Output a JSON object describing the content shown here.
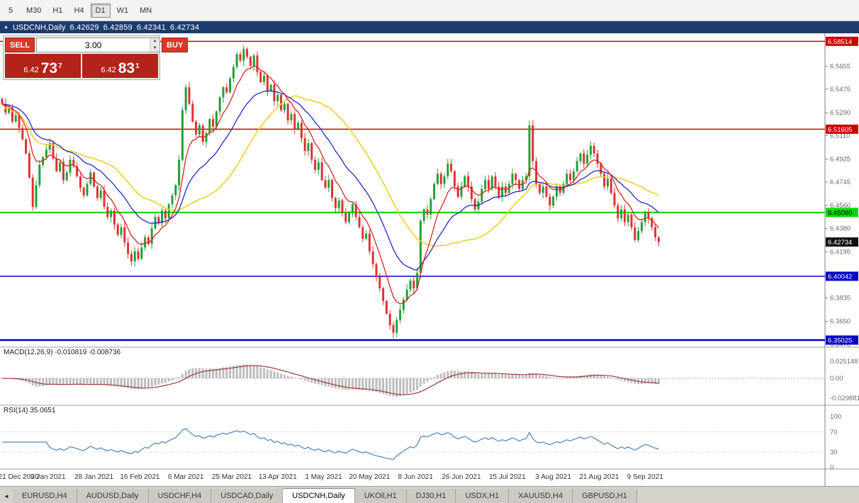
{
  "icons": {
    "collapse": "▲",
    "up_arrow": "▲",
    "down_arrow": "▼",
    "tab_scroll_left": "◄"
  },
  "toolbar": {
    "periods": [
      {
        "label": "5",
        "active": false
      },
      {
        "label": "M30",
        "active": false
      },
      {
        "label": "H1",
        "active": false
      },
      {
        "label": "H4",
        "active": false
      },
      {
        "label": "D1",
        "active": true
      },
      {
        "label": "W1",
        "active": false
      },
      {
        "label": "MN",
        "active": false
      }
    ]
  },
  "chart_window": {
    "symbol": "USDCNH,Daily",
    "open": "6.42629",
    "high": "6.42859",
    "low": "6.42341",
    "close": "6.42734"
  },
  "trade_panel": {
    "sell_label": "SELL",
    "buy_label": "BUY",
    "volume": "3.00",
    "sell_price": {
      "prefix": "6.42",
      "big": "73",
      "sup": "7"
    },
    "buy_price": {
      "prefix": "6.42",
      "big": "83",
      "sup": "1"
    }
  },
  "tabs": [
    {
      "label": "EURUSD,H4",
      "active": false
    },
    {
      "label": "AUDUSD,Daily",
      "active": false
    },
    {
      "label": "USDCHF,H4",
      "active": false
    },
    {
      "label": "USDCAD,Daily",
      "active": false
    },
    {
      "label": "USDCNH,Daily",
      "active": true
    },
    {
      "label": "UKOil,H1",
      "active": false
    },
    {
      "label": "DJ30,H1",
      "active": false
    },
    {
      "label": "USDX,H1",
      "active": false
    },
    {
      "label": "XAUUSD,H4",
      "active": false
    },
    {
      "label": "GBPUSD,H1",
      "active": false
    }
  ],
  "chart_data": {
    "type": "candlestick",
    "symbol": "USDCNH",
    "timeframe": "Daily",
    "closes": [
      6.536,
      6.529,
      6.533,
      6.522,
      6.527,
      6.517,
      6.508,
      6.497,
      6.478,
      6.455,
      6.472,
      6.488,
      6.494,
      6.5,
      6.505,
      6.493,
      6.483,
      6.49,
      6.476,
      6.482,
      6.492,
      6.487,
      6.479,
      6.47,
      6.464,
      6.473,
      6.482,
      6.471,
      6.462,
      6.468,
      6.455,
      6.447,
      6.452,
      6.441,
      6.433,
      6.439,
      6.427,
      6.418,
      6.412,
      6.42,
      6.414,
      6.423,
      6.431,
      6.426,
      6.438,
      6.447,
      6.442,
      6.452,
      6.446,
      6.457,
      6.464,
      6.472,
      6.492,
      6.531,
      6.549,
      6.536,
      6.522,
      6.512,
      6.519,
      6.506,
      6.513,
      6.524,
      6.518,
      6.53,
      6.541,
      6.549,
      6.545,
      6.556,
      6.565,
      6.575,
      6.57,
      6.579,
      6.573,
      6.566,
      6.574,
      6.561,
      6.553,
      6.558,
      6.546,
      6.551,
      6.538,
      6.543,
      6.531,
      6.536,
      6.523,
      6.528,
      6.516,
      6.521,
      6.509,
      6.499,
      6.505,
      6.492,
      6.484,
      6.49,
      6.476,
      6.47,
      6.476,
      6.462,
      6.454,
      6.46,
      6.45,
      6.443,
      6.451,
      6.457,
      6.447,
      6.439,
      6.43,
      6.434,
      6.42,
      6.41,
      6.4,
      6.391,
      6.381,
      6.371,
      6.362,
      6.356,
      6.366,
      6.374,
      6.382,
      6.39,
      6.397,
      6.391,
      6.403,
      6.444,
      6.453,
      6.449,
      6.461,
      6.473,
      6.481,
      6.473,
      6.479,
      6.489,
      6.483,
      6.471,
      6.463,
      6.471,
      6.479,
      6.471,
      6.461,
      6.453,
      6.459,
      6.469,
      6.476,
      6.469,
      6.479,
      6.471,
      6.463,
      6.471,
      6.466,
      6.473,
      6.481,
      6.476,
      6.469,
      6.476,
      6.479,
      6.519,
      6.491,
      6.473,
      6.466,
      6.471,
      6.463,
      6.456,
      6.463,
      6.471,
      6.466,
      6.473,
      6.481,
      6.476,
      6.483,
      6.491,
      6.497,
      6.489,
      6.496,
      6.503,
      6.497,
      6.489,
      6.481,
      6.471,
      6.477,
      6.466,
      6.456,
      6.446,
      6.453,
      6.443,
      6.449,
      6.439,
      6.429,
      6.436,
      6.443,
      6.451,
      6.446,
      6.439,
      6.431,
      6.4273
    ],
    "levels": [
      {
        "price": 6.58514,
        "color": "#cc0000",
        "width": 1.5
      },
      {
        "price": 6.51605,
        "color": "#cc0000",
        "width": 1.5
      },
      {
        "price": 6.4506,
        "color": "#00d800",
        "width": 2
      },
      {
        "price": 6.40042,
        "color": "#0000c8",
        "width": 1.5
      },
      {
        "price": 6.35025,
        "color": "#0000c8",
        "width": 2.5
      }
    ],
    "price_axis_ticks": [
      "6.5655",
      "6.5475",
      "6.5290",
      "6.5110",
      "6.4925",
      "6.4745",
      "6.4560",
      "6.4380",
      "6.4195",
      "6.4015",
      "6.3835",
      "6.3650",
      "6.3470"
    ],
    "price_badges": [
      {
        "value": "6.58514",
        "bg": "#cc0000",
        "fg": "#ffffff"
      },
      {
        "value": "6.51605",
        "bg": "#cc0000",
        "fg": "#ffffff"
      },
      {
        "value": "6.45060",
        "bg": "#00d800",
        "fg": "#000000"
      },
      {
        "value": "6.42734",
        "bg": "#111111",
        "fg": "#ffffff"
      },
      {
        "value": "6.40042",
        "bg": "#0000c8",
        "fg": "#ffffff"
      },
      {
        "value": "6.35025",
        "bg": "#0000c8",
        "fg": "#ffffff"
      }
    ],
    "macd": {
      "label": "MACD(12,26,9) -0.010819 -0.008736",
      "params": "12,26,9",
      "main_value": "-0.010819",
      "signal_value": "-0.008736",
      "ticks": [
        "0.025148",
        "0.00",
        "-0.029881"
      ]
    },
    "rsi": {
      "label": "RSI(14) 35.0651",
      "value": "35.0651",
      "ticks": [
        "100",
        "70",
        "30",
        "0"
      ],
      "levels": [
        70,
        30
      ]
    },
    "dates": [
      "21 Dec 2020",
      "9 Jan 2021",
      "28 Jan 2021",
      "16 Feb 2021",
      "6 Mar 2021",
      "25 Mar 2021",
      "13 Apr 2021",
      "1 May 2021",
      "20 May 2021",
      "8 Jun 2021",
      "26 Jun 2021",
      "15 Jul 2021",
      "3 Aug 2021",
      "21 Aug 2021",
      "9 Sep 2021"
    ],
    "colors": {
      "bull": "#21a038",
      "bear": "#e03131",
      "ma_fast": "#dd2222",
      "ma_mid": "#2228c8",
      "ma_slow": "#f2cf2a",
      "macd_hist": "#bdbdbd",
      "macd_signal": "#a03a3a",
      "rsi": "#4f81bd"
    }
  }
}
